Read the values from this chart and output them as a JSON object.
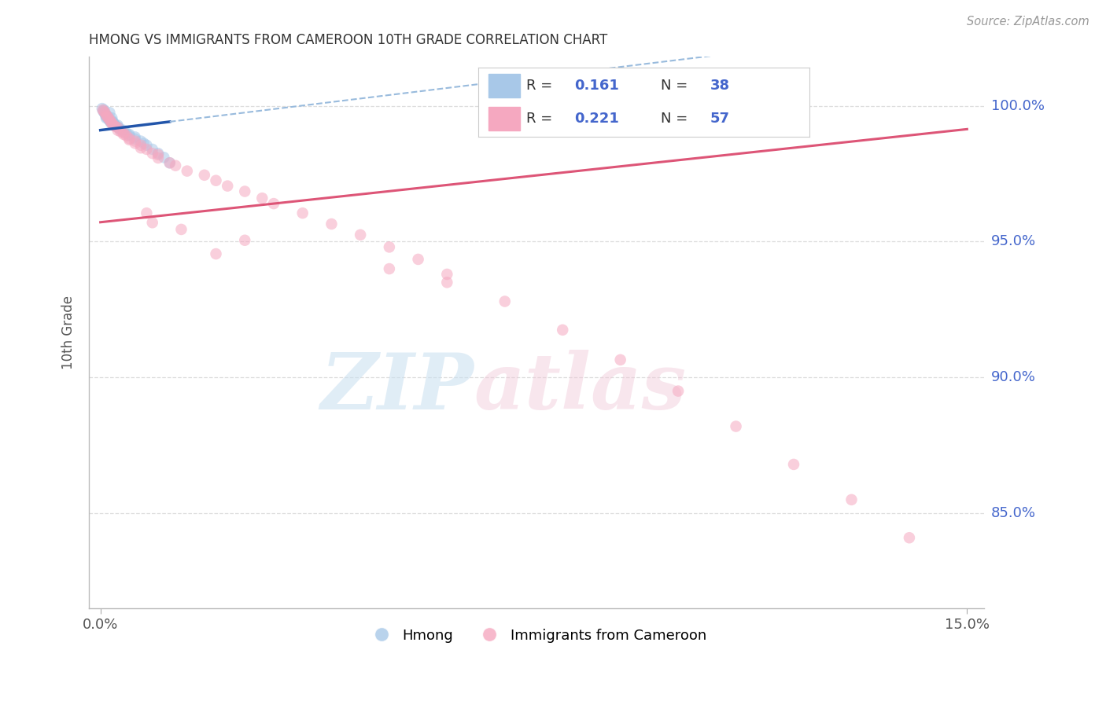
{
  "title": "HMONG VS IMMIGRANTS FROM CAMEROON 10TH GRADE CORRELATION CHART",
  "source": "Source: ZipAtlas.com",
  "ylabel": "10th Grade",
  "hmong_R": 0.161,
  "hmong_N": 38,
  "cameroon_R": 0.221,
  "cameroon_N": 57,
  "hmong_color": "#a8c8e8",
  "cameroon_color": "#f5a8c0",
  "trend_blue": "#2255aa",
  "trend_blue_dash": "#99bbdd",
  "trend_pink": "#dd5577",
  "tick_color": "#4466cc",
  "grid_color": "#dddddd",
  "xlim": [
    -0.002,
    0.153
  ],
  "ylim": [
    0.815,
    1.018
  ],
  "yticks": [
    0.85,
    0.9,
    0.95,
    1.0
  ],
  "ytick_labels": [
    "85.0%",
    "90.0%",
    "95.0%",
    "100.0%"
  ],
  "xticks": [
    0.0,
    0.15
  ],
  "xtick_labels": [
    "0.0%",
    "15.0%"
  ],
  "legend_label_hmong": "Hmong",
  "legend_label_cameroon": "Immigrants from Cameroon",
  "hmong_x": [
    0.0003,
    0.0005,
    0.0006,
    0.0007,
    0.0008,
    0.001,
    0.001,
    0.001,
    0.0012,
    0.0013,
    0.0014,
    0.0015,
    0.0016,
    0.0017,
    0.0018,
    0.002,
    0.002,
    0.0022,
    0.0023,
    0.0025,
    0.003,
    0.003,
    0.0032,
    0.0035,
    0.004,
    0.004,
    0.0045,
    0.005,
    0.005,
    0.006,
    0.006,
    0.007,
    0.0075,
    0.008,
    0.009,
    0.01,
    0.011,
    0.012
  ],
  "hmong_y": [
    0.999,
    0.998,
    0.9985,
    0.9975,
    0.997,
    0.9965,
    0.996,
    0.9955,
    0.9962,
    0.9958,
    0.9952,
    0.9948,
    0.9975,
    0.9943,
    0.9938,
    0.9955,
    0.9945,
    0.994,
    0.9935,
    0.993,
    0.9928,
    0.9922,
    0.9918,
    0.9912,
    0.991,
    0.9905,
    0.99,
    0.9895,
    0.989,
    0.9885,
    0.9878,
    0.987,
    0.9862,
    0.9855,
    0.984,
    0.9825,
    0.981,
    0.979
  ],
  "cameroon_x": [
    0.0004,
    0.0006,
    0.0008,
    0.001,
    0.0012,
    0.0014,
    0.0016,
    0.0018,
    0.002,
    0.0022,
    0.0025,
    0.003,
    0.003,
    0.0035,
    0.004,
    0.004,
    0.0045,
    0.005,
    0.005,
    0.006,
    0.006,
    0.007,
    0.007,
    0.008,
    0.009,
    0.01,
    0.01,
    0.012,
    0.013,
    0.015,
    0.018,
    0.02,
    0.022,
    0.025,
    0.028,
    0.03,
    0.035,
    0.04,
    0.045,
    0.05,
    0.055,
    0.06,
    0.07,
    0.08,
    0.09,
    0.1,
    0.11,
    0.12,
    0.13,
    0.14,
    0.05,
    0.06,
    0.025,
    0.008,
    0.009,
    0.014,
    0.02
  ],
  "cameroon_y": [
    0.9985,
    0.998,
    0.9975,
    0.9965,
    0.996,
    0.9955,
    0.9948,
    0.9942,
    0.9935,
    0.993,
    0.9925,
    0.992,
    0.991,
    0.9905,
    0.99,
    0.9895,
    0.989,
    0.988,
    0.9875,
    0.987,
    0.9862,
    0.9855,
    0.9845,
    0.984,
    0.9825,
    0.982,
    0.9808,
    0.979,
    0.978,
    0.976,
    0.9745,
    0.9725,
    0.9705,
    0.9685,
    0.966,
    0.964,
    0.9605,
    0.9565,
    0.9525,
    0.948,
    0.9435,
    0.938,
    0.928,
    0.9175,
    0.9065,
    0.895,
    0.882,
    0.868,
    0.855,
    0.841,
    0.94,
    0.935,
    0.9505,
    0.9605,
    0.957,
    0.9545,
    0.9455
  ],
  "marker_size": 110,
  "marker_alpha": 0.55,
  "title_fontsize": 12,
  "axis_fontsize": 12,
  "tick_fontsize": 13
}
